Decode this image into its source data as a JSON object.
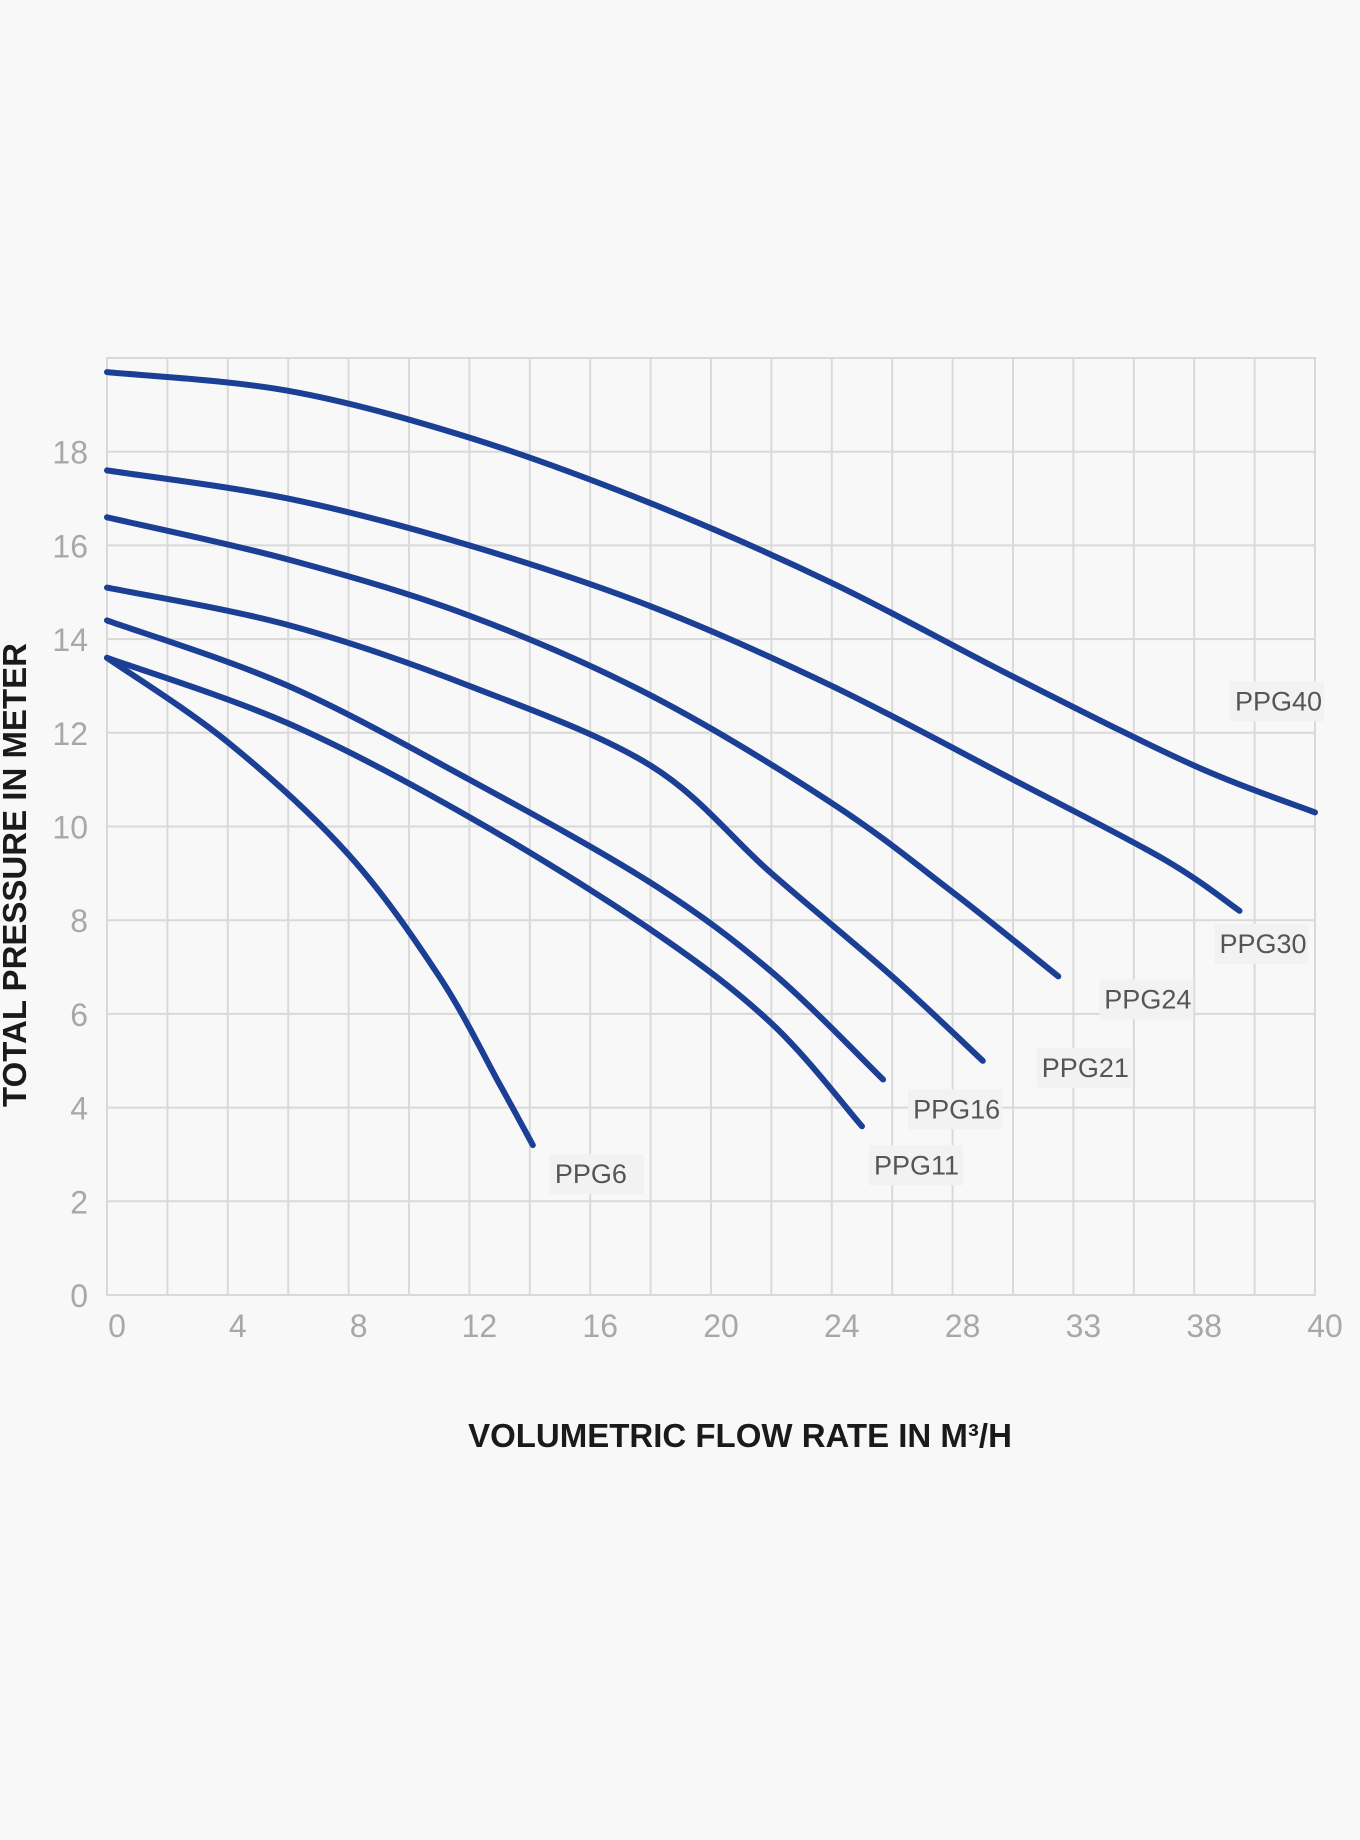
{
  "chart_data": {
    "type": "line",
    "xlabel": "VOLUMETRIC FLOW RATE IN M³/H",
    "ylabel": "TOTAL PRESSURE IN METER",
    "x_tick_labels": [
      "0",
      "4",
      "8",
      "12",
      "16",
      "20",
      "24",
      "28",
      "33",
      "38",
      "40"
    ],
    "y_ticks": [
      0,
      2,
      4,
      6,
      8,
      10,
      12,
      14,
      16,
      18
    ],
    "xlim": [
      0,
      40
    ],
    "ylim": [
      0,
      20
    ],
    "grid": true,
    "line_color": "#1a3f94",
    "series": [
      {
        "name": "PPG40",
        "points": [
          [
            0,
            19.7
          ],
          [
            6,
            19.3
          ],
          [
            12,
            18.3
          ],
          [
            18,
            16.9
          ],
          [
            24,
            15.2
          ],
          [
            30,
            13.2
          ],
          [
            36,
            11.3
          ],
          [
            40,
            10.3
          ]
        ]
      },
      {
        "name": "PPG30",
        "points": [
          [
            0,
            17.6
          ],
          [
            6,
            17.0
          ],
          [
            12,
            16.0
          ],
          [
            18,
            14.7
          ],
          [
            24,
            13.0
          ],
          [
            30,
            11.0
          ],
          [
            35,
            9.3
          ],
          [
            37.5,
            8.2
          ]
        ]
      },
      {
        "name": "PPG24",
        "points": [
          [
            0,
            16.6
          ],
          [
            6,
            15.7
          ],
          [
            12,
            14.5
          ],
          [
            18,
            12.8
          ],
          [
            24,
            10.5
          ],
          [
            28,
            8.6
          ],
          [
            31.5,
            6.8
          ]
        ]
      },
      {
        "name": "PPG21",
        "points": [
          [
            0,
            15.1
          ],
          [
            6,
            14.3
          ],
          [
            12,
            13.0
          ],
          [
            18,
            11.3
          ],
          [
            22,
            9.0
          ],
          [
            26,
            6.8
          ],
          [
            29,
            5.0
          ]
        ]
      },
      {
        "name": "PPG16",
        "points": [
          [
            0,
            14.4
          ],
          [
            6,
            13.0
          ],
          [
            12,
            11.0
          ],
          [
            18,
            8.8
          ],
          [
            22,
            6.9
          ],
          [
            25.7,
            4.6
          ]
        ]
      },
      {
        "name": "PPG11",
        "points": [
          [
            0,
            13.6
          ],
          [
            6,
            12.2
          ],
          [
            12,
            10.2
          ],
          [
            18,
            7.8
          ],
          [
            22,
            5.8
          ],
          [
            25,
            3.6
          ]
        ]
      },
      {
        "name": "PPG6",
        "points": [
          [
            0,
            13.6
          ],
          [
            4,
            11.8
          ],
          [
            8,
            9.4
          ],
          [
            11,
            6.8
          ],
          [
            13,
            4.5
          ],
          [
            14.1,
            3.2
          ]
        ]
      }
    ]
  }
}
